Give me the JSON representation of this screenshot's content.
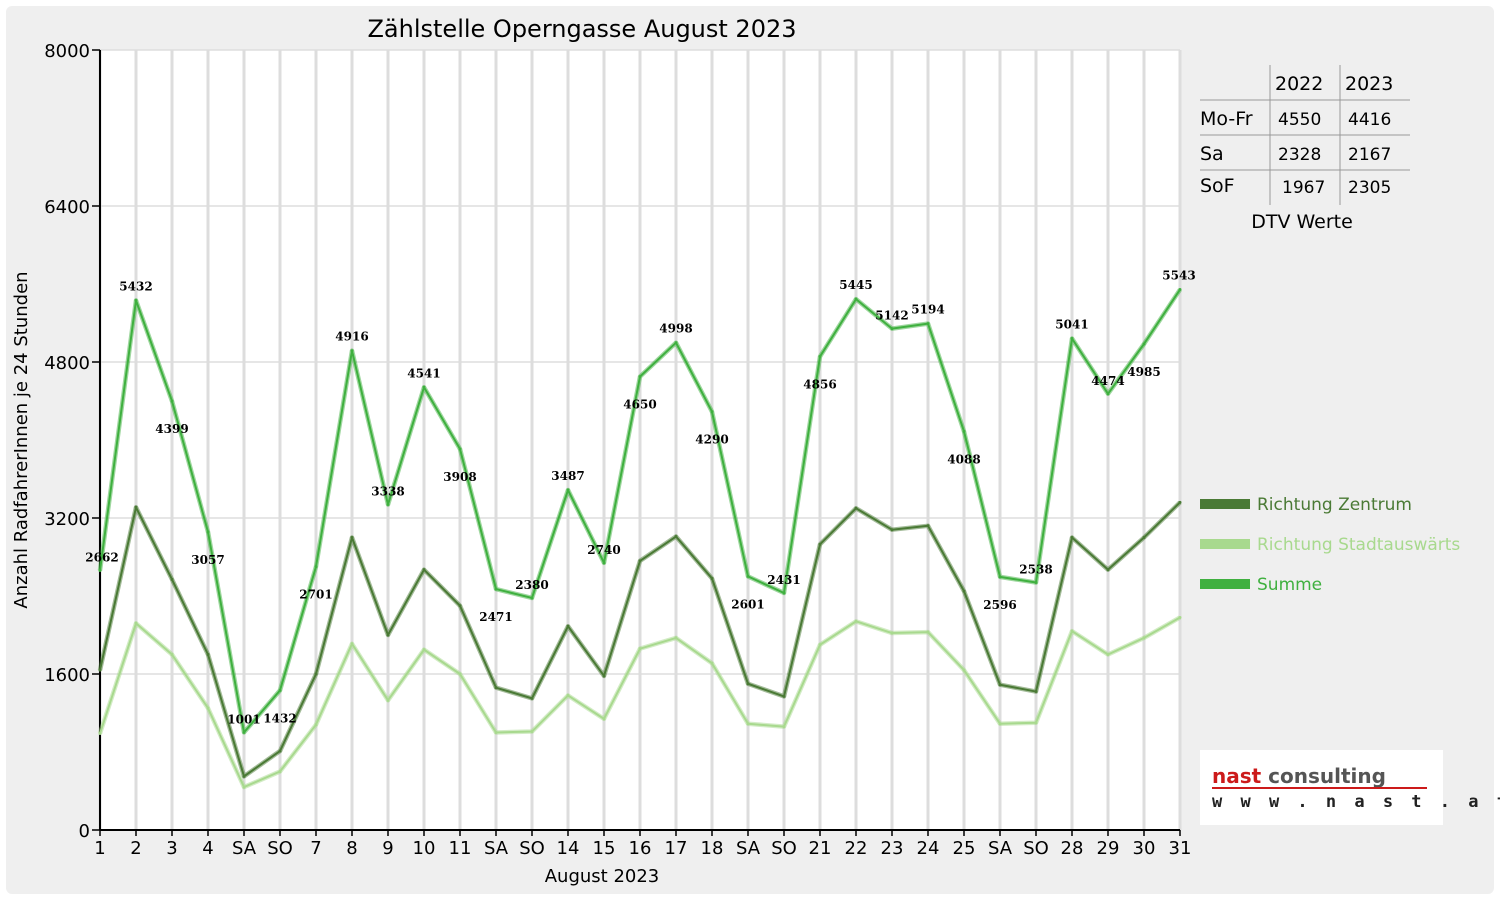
{
  "chart_data": {
    "type": "line",
    "title": "Zählstelle Operngasse August 2023",
    "xlabel": "August 2023",
    "ylabel": "Anzahl RadfahrerInnen je 24 Stunden",
    "ylim": [
      0,
      8000
    ],
    "yticks": [
      "0",
      "1600",
      "3200",
      "4800",
      "6400",
      "8000"
    ],
    "grid": "vertical",
    "categories": [
      "1",
      "2",
      "3",
      "4",
      "SA",
      "SO",
      "7",
      "8",
      "9",
      "10",
      "11",
      "SA",
      "SO",
      "14",
      "15",
      "16",
      "17",
      "18",
      "SA",
      "SO",
      "21",
      "22",
      "23",
      "24",
      "25",
      "SA",
      "SO",
      "28",
      "29",
      "30",
      "31"
    ],
    "red_categories": [
      5,
      12,
      14,
      19,
      26
    ],
    "series": [
      {
        "name": "Richtung Zentrum",
        "color": "#4a7a35",
        "values": [
          1640,
          3310,
          2570,
          1800,
          550,
          810,
          1600,
          3000,
          2000,
          2670,
          2300,
          1460,
          1350,
          2090,
          1580,
          2760,
          3010,
          2580,
          1500,
          1370,
          2930,
          3300,
          3080,
          3120,
          2450,
          1490,
          1420,
          3000,
          2670,
          3000,
          3360
        ]
      },
      {
        "name": "Richtung Stadtauswärts",
        "color": "#a8d98e",
        "values": [
          990,
          2120,
          1800,
          1250,
          440,
          600,
          1080,
          1910,
          1330,
          1850,
          1600,
          1000,
          1010,
          1380,
          1140,
          1860,
          1970,
          1710,
          1090,
          1060,
          1900,
          2140,
          2020,
          2030,
          1640,
          1090,
          1100,
          2040,
          1800,
          1970,
          2180
        ]
      },
      {
        "name": "Summe",
        "color": "#3fb03f",
        "values": [
          2662,
          5432,
          4399,
          3057,
          1001,
          1432,
          2701,
          4916,
          3338,
          4541,
          3908,
          2471,
          2380,
          3487,
          2740,
          4650,
          4998,
          4290,
          2601,
          2431,
          4856,
          5445,
          5142,
          5194,
          4088,
          2596,
          2538,
          5041,
          4474,
          4985,
          5543
        ],
        "labels": [
          "2662",
          "5432",
          "4399",
          "3057",
          "1001",
          "1432",
          "2701",
          "4916",
          "3338",
          "4541",
          "3908",
          "2471",
          "2380",
          "3487",
          "2740",
          "4650",
          "4998",
          "4290",
          "2601",
          "2431",
          "4856",
          "5445",
          "5142",
          "5194",
          "4088",
          "2596",
          "2538",
          "5041",
          "4474",
          "4985",
          "5543"
        ]
      }
    ],
    "legend_position": "right"
  },
  "dtv_table": {
    "headers": [
      "",
      "2022",
      "2023"
    ],
    "rows": [
      [
        "Mo-Fr",
        "4550",
        "4416"
      ],
      [
        "Sa",
        "2328",
        "2167"
      ],
      [
        "SoF",
        "1967",
        "2305"
      ]
    ],
    "caption": "DTV Werte"
  },
  "logo": {
    "brand_red": "nast",
    "brand_gray": " consulting",
    "url": "w w w . n a s t . a t",
    "red_color": "#cc1a1a",
    "gray_color": "#555555"
  },
  "colors": {
    "background": "#efefef",
    "plot": "#ffffff",
    "grid": "#dddddd",
    "weekend_label": "#ff0000"
  }
}
